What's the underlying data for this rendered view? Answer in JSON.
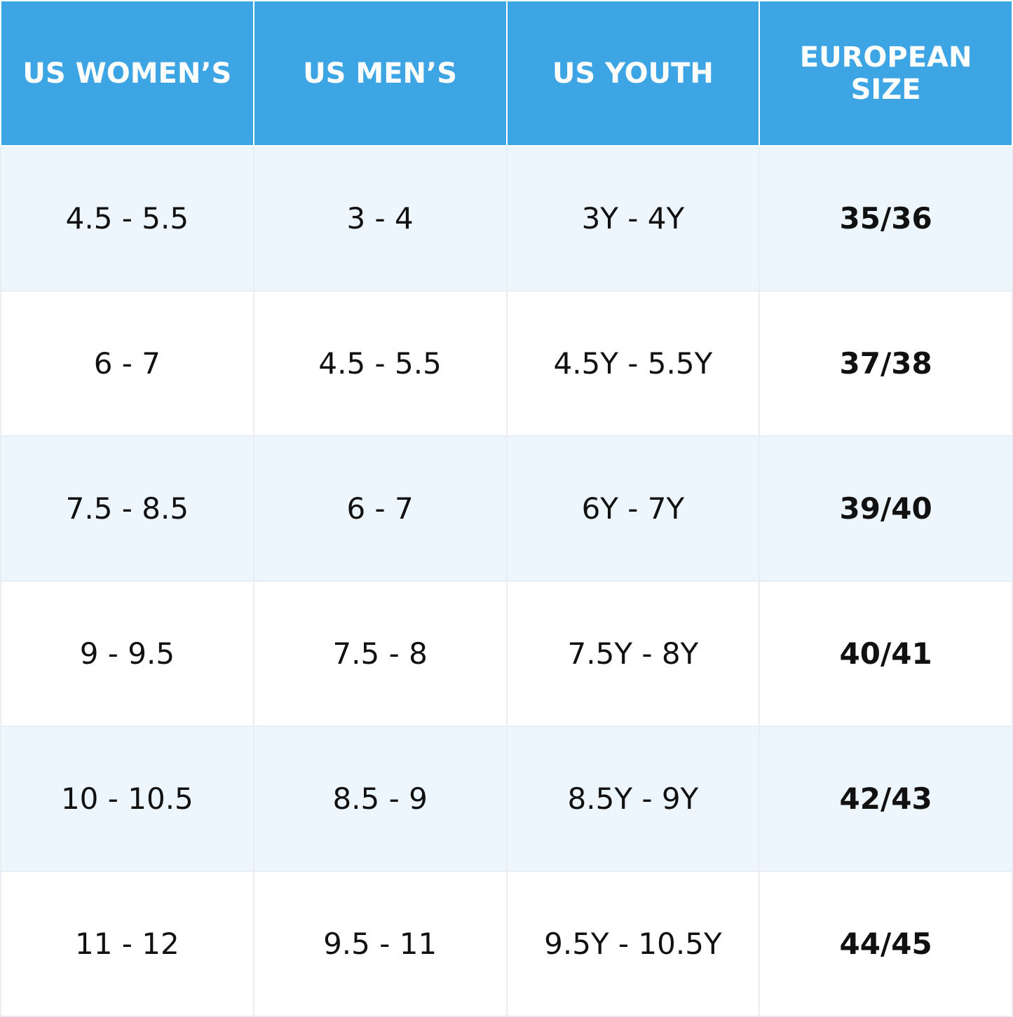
{
  "table": {
    "header": [
      "US WOMEN’S",
      "US MEN’S",
      "US YOUTH",
      "EUROPEAN SIZE"
    ],
    "rows": [
      [
        "4.5 - 5.5",
        "3 - 4",
        "3Y - 4Y",
        "35/36"
      ],
      [
        "6 - 7",
        "4.5 - 5.5",
        "4.5Y - 5.5Y",
        "37/38"
      ],
      [
        "7.5 - 8.5",
        "6 - 7",
        "6Y - 7Y",
        "39/40"
      ],
      [
        "9 - 9.5",
        "7.5 - 8",
        "7.5Y - 8Y",
        "40/41"
      ],
      [
        "10 - 10.5",
        "8.5 - 9",
        "8.5Y - 9Y",
        "42/43"
      ],
      [
        "11 - 12",
        "9.5 - 11",
        "9.5Y - 10.5Y",
        "44/45"
      ]
    ]
  }
}
